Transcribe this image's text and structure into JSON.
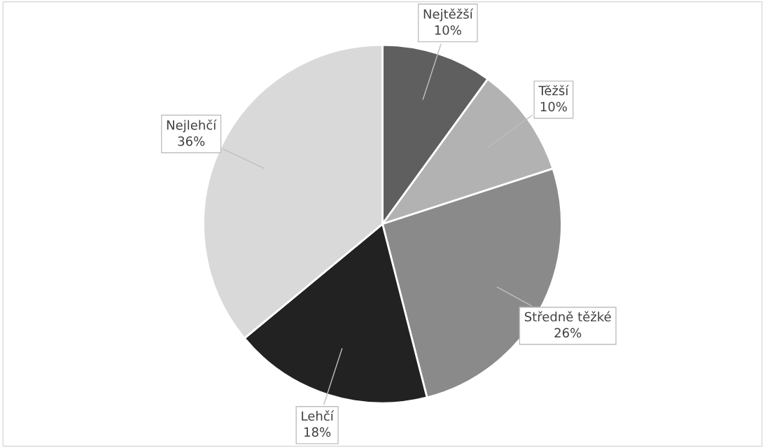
{
  "chart_data": {
    "type": "pie",
    "categories": [
      "Nejtěžší",
      "Těžší",
      "Středně těžké",
      "Lehčí",
      "Nejlehčí"
    ],
    "values": [
      10,
      10,
      26,
      18,
      36
    ],
    "colors": [
      "#5f5f5f",
      "#b2b2b2",
      "#8a8a8a",
      "#222222",
      "#d9d9d9"
    ],
    "value_labels": [
      "10%",
      "10%",
      "26%",
      "18%",
      "36%"
    ],
    "legend": false
  }
}
